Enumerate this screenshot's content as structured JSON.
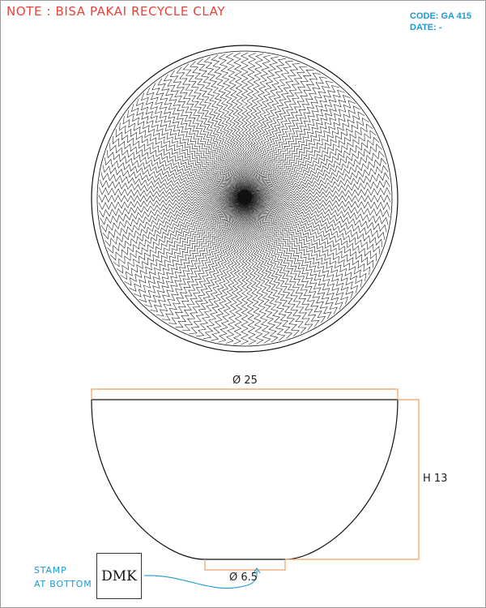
{
  "note": "NOTE : BISA PAKAI RECYCLE CLAY",
  "code_label": "CODE: GA 415",
  "date_label": "DATE: -",
  "dimensions": {
    "diameter_top": "Ø 25",
    "height": "H 13",
    "diameter_base": "Ø 6.5"
  },
  "stamp": {
    "note_line1": "STAMP",
    "note_line2": "AT BOTTOM",
    "text": "DMK"
  },
  "colors": {
    "note": "#e8433a",
    "header": "#1a9ad6",
    "dimension_lines": "#f0a060",
    "drawing": "#111111"
  }
}
